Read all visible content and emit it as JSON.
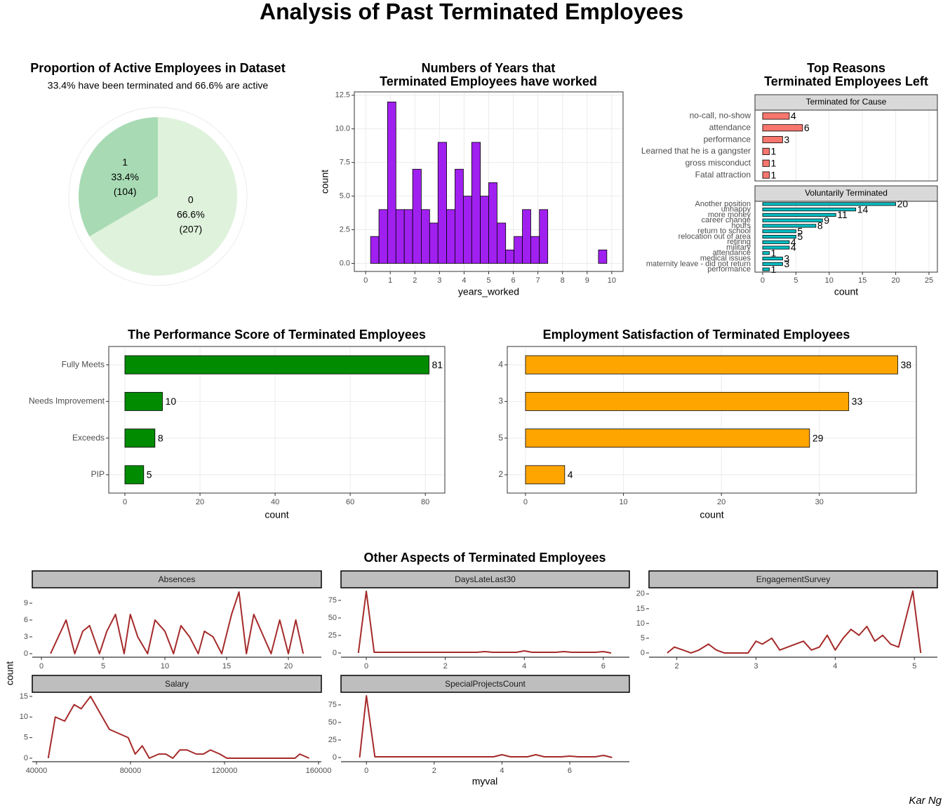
{
  "title": "Analysis of Past Terminated Employees",
  "caption": "Kar Ng",
  "chart_data": [
    {
      "type": "pie",
      "title": "Proportion of Active Employees in Dataset",
      "subtitle": "33.4% have been terminated and 66.6% are active",
      "categories": [
        "1",
        "0"
      ],
      "values": [
        104,
        207
      ],
      "value_labels": [
        "(104)",
        "(207)"
      ],
      "percents": [
        33.4,
        66.6
      ],
      "percent_labels": [
        "33.4%",
        "66.6%"
      ],
      "colors": [
        "#a8dbb4",
        "#dff2dc"
      ]
    },
    {
      "type": "histogram",
      "title": [
        "Numbers of Years that",
        "Terminated Employees have worked"
      ],
      "xlabel": "years_worked",
      "ylabel": "count",
      "color": "#a020f0",
      "bins": [
        0.2,
        0.54,
        0.89,
        1.23,
        1.57,
        1.91,
        2.26,
        2.6,
        2.94,
        3.29,
        3.63,
        3.97,
        4.31,
        4.66,
        5,
        5.34,
        5.69,
        6.03,
        6.37,
        6.71,
        7.06,
        7.4,
        7.74,
        8.09,
        8.43,
        8.77,
        9.11,
        9.46,
        9.8
      ],
      "counts": [
        2,
        4,
        12,
        4,
        4,
        7,
        4,
        3,
        9,
        4,
        7,
        5,
        9,
        5,
        6,
        3,
        1,
        2,
        4,
        2,
        4,
        0,
        0,
        0,
        0,
        0,
        0,
        1
      ],
      "xlim": [
        -0.46,
        10.46
      ],
      "ylim": [
        -0.6,
        12.75
      ],
      "xticks": [
        0,
        1,
        2,
        3,
        4,
        5,
        6,
        7,
        8,
        9,
        10
      ],
      "yticks": [
        {
          "value": 0,
          "label": "0.0"
        },
        {
          "value": 2.5,
          "label": "2.5"
        },
        {
          "value": 5,
          "label": "5.0"
        },
        {
          "value": 7.5,
          "label": "7.5"
        },
        {
          "value": 10,
          "label": "10.0"
        },
        {
          "value": 12.5,
          "label": "12.5"
        }
      ],
      "grid": true
    },
    {
      "type": "facet-bar",
      "title": [
        "Top Reasons",
        "Terminated Employees Left"
      ],
      "xlabel": "count",
      "xlim": [
        -1.16,
        26.27
      ],
      "xticks": [
        0,
        5,
        10,
        15,
        20,
        25
      ],
      "grid": true,
      "facets": [
        {
          "name": "Terminated for Cause",
          "color": "#f8766d",
          "categories": [
            "no-call, no-show",
            "attendance",
            "performance",
            "Learned that he is a gangster",
            "gross misconduct",
            "Fatal attraction"
          ],
          "values": [
            4,
            6,
            3,
            1,
            1,
            1
          ]
        },
        {
          "name": "Voluntarily Terminated",
          "color": "#00bfc4",
          "categories": [
            "Another position",
            "unhappy",
            "more money",
            "career change",
            "hours",
            "return to school",
            "relocation out of area",
            "retiring",
            "military",
            "attendance",
            "medical issues",
            "maternity leave - did not return",
            "performance"
          ],
          "values": [
            20,
            14,
            11,
            9,
            8,
            5,
            5,
            4,
            4,
            1,
            3,
            3,
            1
          ]
        }
      ]
    },
    {
      "type": "hbar",
      "title": "The Performance Score of Terminated Employees",
      "xlabel": "count",
      "color": "#008b00",
      "categories": [
        "Fully Meets",
        "Needs Improvement",
        "Exceeds",
        "PIP"
      ],
      "values": [
        81,
        10,
        8,
        5
      ],
      "xlim": [
        -4.3,
        85.2
      ],
      "xticks": [
        0,
        20,
        40,
        60,
        80
      ],
      "grid": true
    },
    {
      "type": "hbar",
      "title": "Employment Satisfaction of Terminated Employees",
      "xlabel": "count",
      "color": "#ffa500",
      "categories": [
        "4",
        "3",
        "5",
        "2"
      ],
      "values": [
        38,
        33,
        29,
        4
      ],
      "xlim": [
        -1.86,
        39.9
      ],
      "xticks": [
        0,
        10,
        20,
        30
      ],
      "grid": true
    },
    {
      "type": "facet-line",
      "title": "Other Aspects of Terminated Employees",
      "xlabel": "myval",
      "ylabel": "count",
      "color": "#a52a2a",
      "panels": [
        {
          "name": "Absences",
          "x": [
            0.74,
            2,
            2.7,
            3.35,
            3.9,
            4.7,
            5.3,
            6,
            6.7,
            7.2,
            7.8,
            8.6,
            9.2,
            10,
            10.7,
            11.3,
            12,
            12.7,
            13.2,
            13.9,
            14.6,
            15.4,
            16,
            16.6,
            17.2,
            18,
            18.6,
            19.3,
            20,
            20.6,
            21.2
          ],
          "y": [
            0,
            6,
            0,
            4,
            5,
            0,
            4,
            7,
            0,
            7,
            3,
            0,
            6,
            4,
            0,
            5,
            3,
            0,
            4,
            3,
            0,
            7,
            11,
            0,
            7,
            3,
            0,
            6,
            0,
            6,
            0
          ],
          "xlim": [
            -0.74,
            22.67
          ],
          "ylim": [
            -0.63,
            11.75
          ],
          "xticks": [
            0,
            5,
            10,
            15,
            20
          ],
          "yticks": [
            0,
            3,
            6,
            9
          ]
        },
        {
          "name": "DaysLateLast30",
          "x": [
            -0.2,
            0,
            0.2,
            2.8,
            3,
            3.2,
            3.8,
            4,
            4.2,
            4.8,
            5,
            5.2,
            5.8,
            6,
            6.2
          ],
          "y": [
            0,
            88,
            1,
            1,
            2,
            1,
            1,
            3,
            1,
            1,
            2,
            1,
            1,
            2,
            0
          ],
          "xlim": [
            -0.64,
            6.66
          ],
          "ylim": [
            -6,
            93
          ],
          "xticks": [
            0,
            2,
            4,
            6
          ],
          "yticks": [
            0,
            25,
            50,
            75
          ]
        },
        {
          "name": "EngagementSurvey",
          "x": [
            1.88,
            1.97,
            2.08,
            2.18,
            2.28,
            2.4,
            2.5,
            2.6,
            2.7,
            2.8,
            2.9,
            3,
            3.08,
            3.2,
            3.3,
            3.4,
            3.5,
            3.6,
            3.7,
            3.8,
            3.9,
            4,
            4.1,
            4.2,
            4.3,
            4.4,
            4.5,
            4.6,
            4.7,
            4.8,
            4.98,
            5.08
          ],
          "y": [
            0,
            2,
            1,
            0,
            1,
            3,
            1,
            0,
            0,
            0,
            0,
            4,
            3,
            5,
            1,
            2,
            3,
            4,
            1,
            2,
            6,
            1,
            5,
            8,
            6,
            9,
            4,
            6,
            3,
            2,
            21,
            0
          ],
          "xlim": [
            1.65,
            5.29
          ],
          "ylim": [
            -1.43,
            22.1
          ],
          "xticks": [
            2,
            3,
            4,
            5
          ],
          "yticks": [
            0,
            5,
            10,
            15,
            20
          ]
        },
        {
          "name": "Salary",
          "x": [
            45000,
            48000,
            52000,
            56000,
            59000,
            63000,
            67000,
            71000,
            75000,
            79000,
            82000,
            85000,
            88000,
            92000,
            95000,
            98000,
            101000,
            104000,
            108000,
            111000,
            114000,
            118000,
            121000,
            150000,
            152000,
            156000
          ],
          "y": [
            0,
            10,
            9,
            13,
            12,
            15,
            11,
            7,
            6,
            5,
            1,
            3,
            0,
            1,
            1,
            0,
            2,
            2,
            1,
            1,
            2,
            1,
            0,
            0,
            1,
            0
          ],
          "xlim": [
            38209,
            161194
          ],
          "ylim": [
            -0.85,
            16
          ],
          "xticks": [
            40000,
            80000,
            120000,
            160000
          ],
          "yticks": [
            0,
            5,
            10,
            15
          ]
        },
        {
          "name": "SpecialProjectsCount",
          "x": [
            -0.2,
            0,
            0.25,
            3.75,
            4,
            4.25,
            4.75,
            5,
            5.25,
            5.75,
            6,
            6.25,
            6.75,
            7,
            7.25
          ],
          "y": [
            0,
            88,
            1,
            1,
            4,
            1,
            1,
            4,
            1,
            1,
            2,
            1,
            1,
            3,
            0
          ],
          "xlim": [
            -0.75,
            7.76
          ],
          "ylim": [
            -6,
            93
          ],
          "xticks": [
            0,
            2,
            4,
            6
          ],
          "yticks": [
            0,
            25,
            50,
            75
          ]
        }
      ]
    }
  ]
}
